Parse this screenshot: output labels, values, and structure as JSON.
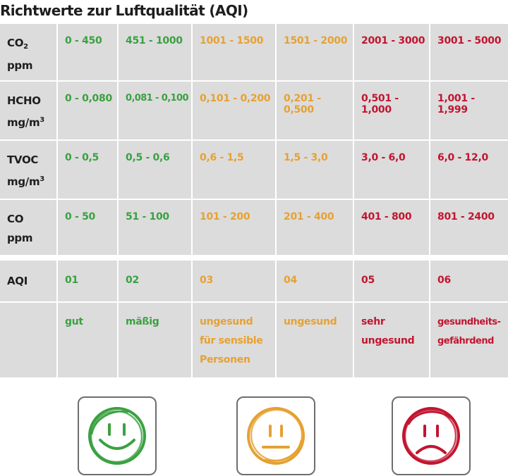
{
  "title": "Richtwerte zur Luftqualität (AQI)",
  "colors": {
    "green": "#3aa141",
    "orange": "#e6a132",
    "red": "#c21530",
    "cell_bg": "#dcdcdc"
  },
  "rows": {
    "co2": {
      "label_main": "CO",
      "label_sub": "2",
      "unit": "ppm",
      "values": [
        "0 - 450",
        "451 - 1000",
        "1001 - 1500",
        "1501 - 2000",
        "2001 - 3000",
        "3001 - 5000"
      ]
    },
    "hcho": {
      "label_main": "HCHO",
      "unit_main": "mg/m",
      "unit_sup": "3",
      "values": [
        "0 - 0,080",
        "0,081 - 0,100",
        "0,101 - 0,200",
        "0,201 - 0,500",
        "0,501 - 1,000",
        "1,001 - 1,999"
      ]
    },
    "tvoc": {
      "label_main": "TVOC",
      "unit_main": "mg/m",
      "unit_sup": "3",
      "values": [
        "0 - 0,5",
        "0,5 - 0,6",
        "0,6 - 1,5",
        "1,5 - 3,0",
        "3,0 - 6,0",
        "6,0 - 12,0"
      ]
    },
    "co": {
      "label_main": "CO",
      "unit": "ppm",
      "values": [
        "0 - 50",
        "51 - 100",
        "101 - 200",
        "201 - 400",
        "401 - 800",
        "801 - 2400"
      ]
    },
    "aqi": {
      "label": "AQI",
      "values": [
        "01",
        "02",
        "03",
        "04",
        "05",
        "06"
      ]
    },
    "desc": {
      "values": [
        "gut",
        "mäßig",
        "ungesund\nfür sensible\nPersonen",
        "ungesund",
        "sehr\nungesund",
        "gesundheits-\ngefährdend"
      ]
    }
  },
  "faces": [
    {
      "mood": "happy-face-icon",
      "color": "#3aa141"
    },
    {
      "mood": "neutral-face-icon",
      "color": "#e6a132"
    },
    {
      "mood": "sad-face-icon",
      "color": "#c21530"
    }
  ]
}
